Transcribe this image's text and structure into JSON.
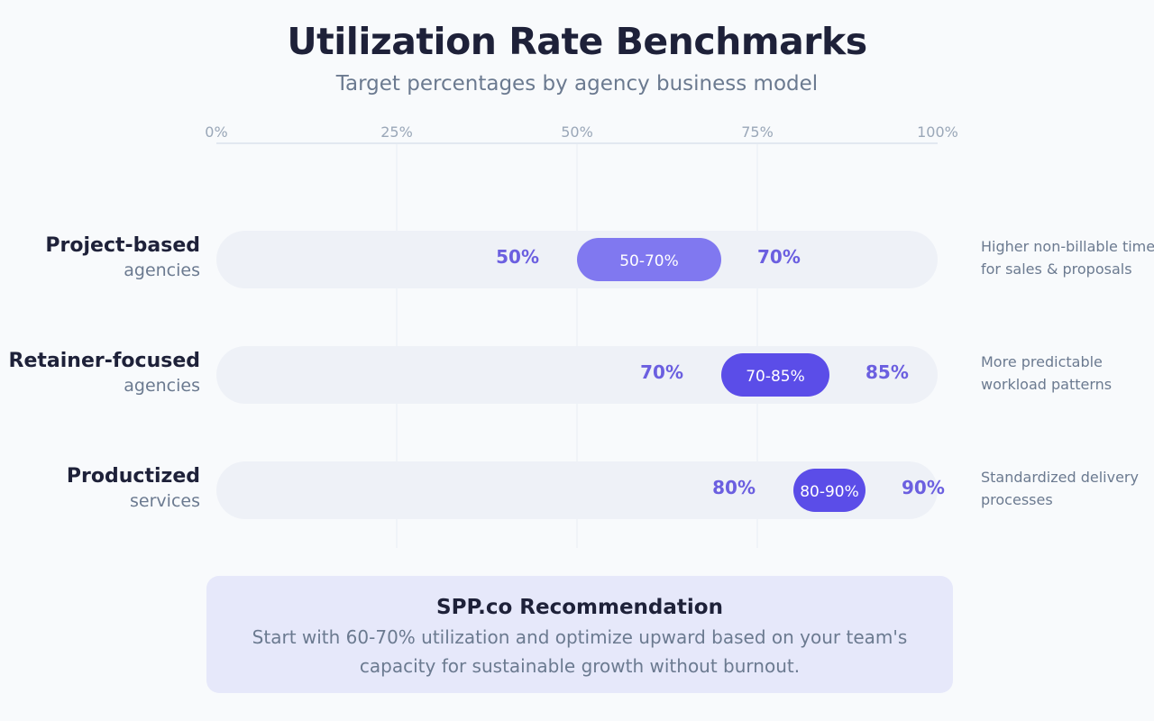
{
  "chart_data": {
    "type": "bar",
    "title": "Utilization Rate Benchmarks",
    "subtitle": "Target percentages by agency business model",
    "x_ticks": [
      "0%",
      "25%",
      "50%",
      "75%",
      "100%"
    ],
    "xlim": [
      0,
      100
    ],
    "grid": true,
    "rows": [
      {
        "title": "Project-based",
        "subtitle": "agencies",
        "low": 50,
        "high": 70,
        "low_label": "50%",
        "high_label": "70%",
        "range_label": "50-70%",
        "note_lines": [
          "Higher non-billable time",
          "for sales & proposals"
        ],
        "color": "#8078f0",
        "label_color": "#6b5fe0"
      },
      {
        "title": "Retainer-focused",
        "subtitle": "agencies",
        "low": 70,
        "high": 85,
        "low_label": "70%",
        "high_label": "85%",
        "range_label": "70-85%",
        "note_lines": [
          "More predictable",
          "workload patterns"
        ],
        "color": "#5b4de8",
        "label_color": "#6b5fe0"
      },
      {
        "title": "Productized",
        "subtitle": "services",
        "low": 80,
        "high": 90,
        "low_label": "80%",
        "high_label": "90%",
        "range_label": "80-90%",
        "note_lines": [
          "Standardized delivery",
          "processes"
        ],
        "color": "#5b4de8",
        "label_color": "#6b5fe0"
      }
    ]
  },
  "recommendation": {
    "title": "SPP.co Recommendation",
    "text": "Start with 60-70% utilization and optimize upward based on your team's capacity for sustainable growth without burnout."
  },
  "colors": {
    "track": "#eef1f7",
    "grid": "#eef1f6",
    "axis": "#e2e8f0",
    "accent": "#5b4de8"
  }
}
